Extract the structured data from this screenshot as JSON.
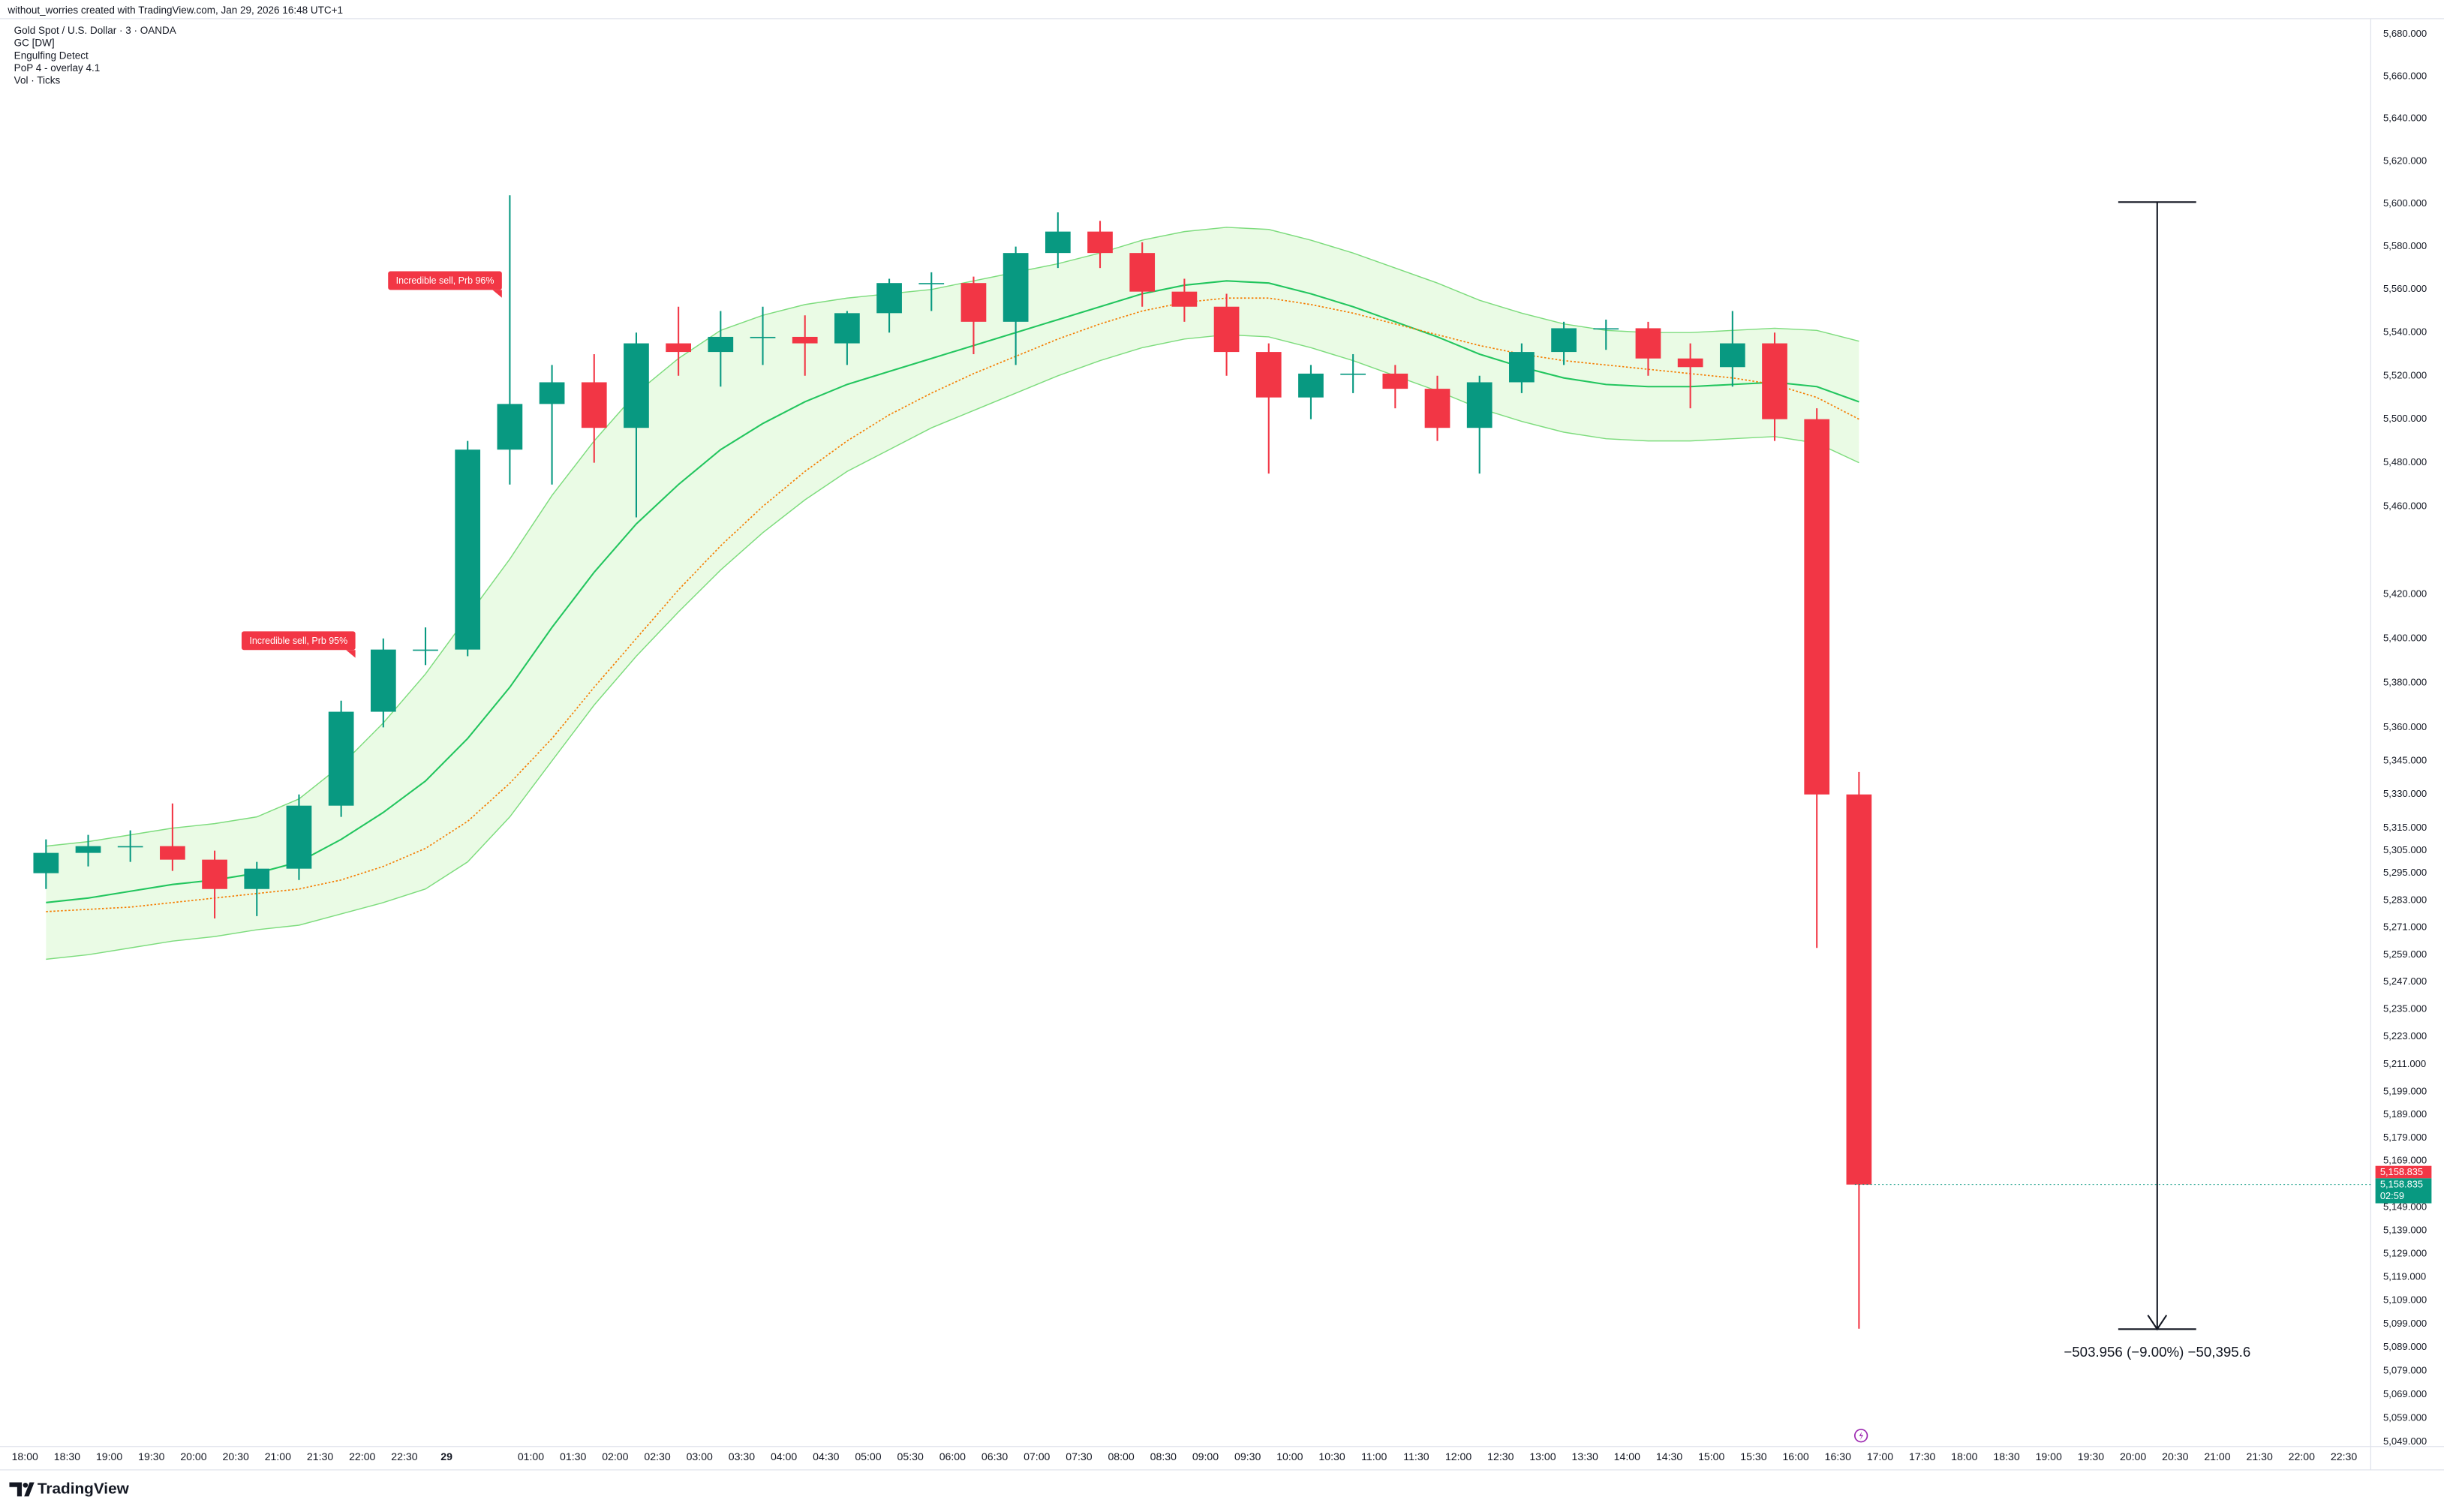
{
  "chart_data": {
    "type": "candlestick",
    "credit": "without_worries created with TradingView.com, Jan 29, 2026 16:48 UTC+1",
    "title": "Gold Spot / U.S. Dollar · 3 · OANDA",
    "indicators": [
      "GC [DW]",
      "Engulfing Detect",
      "PoP 4 - overlay 4.1",
      "Vol · Ticks"
    ],
    "brand": "TradingView",
    "log_scale": true,
    "grid": false,
    "ylim": [
      5047,
      5687.4
    ],
    "yticks": [
      {
        "value": 5680,
        "label": "5,680.000"
      },
      {
        "value": 5660,
        "label": "5,660.000"
      },
      {
        "value": 5640,
        "label": "5,640.000"
      },
      {
        "value": 5620,
        "label": "5,620.000"
      },
      {
        "value": 5600,
        "label": "5,600.000"
      },
      {
        "value": 5580,
        "label": "5,580.000"
      },
      {
        "value": 5560,
        "label": "5,560.000"
      },
      {
        "value": 5540,
        "label": "5,540.000"
      },
      {
        "value": 5520,
        "label": "5,520.000"
      },
      {
        "value": 5500,
        "label": "5,500.000"
      },
      {
        "value": 5480,
        "label": "5,480.000"
      },
      {
        "value": 5460,
        "label": "5,460.000"
      },
      {
        "value": 5420,
        "label": "5,420.000"
      },
      {
        "value": 5400,
        "label": "5,400.000"
      },
      {
        "value": 5380,
        "label": "5,380.000"
      },
      {
        "value": 5360,
        "label": "5,360.000"
      },
      {
        "value": 5345,
        "label": "5,345.000"
      },
      {
        "value": 5330,
        "label": "5,330.000"
      },
      {
        "value": 5315,
        "label": "5,315.000"
      },
      {
        "value": 5305,
        "label": "5,305.000"
      },
      {
        "value": 5295,
        "label": "5,295.000"
      },
      {
        "value": 5283,
        "label": "5,283.000"
      },
      {
        "value": 5271,
        "label": "5,271.000"
      },
      {
        "value": 5259,
        "label": "5,259.000"
      },
      {
        "value": 5247,
        "label": "5,247.000"
      },
      {
        "value": 5235,
        "label": "5,235.000"
      },
      {
        "value": 5223,
        "label": "5,223.000"
      },
      {
        "value": 5211,
        "label": "5,211.000"
      },
      {
        "value": 5199,
        "label": "5,199.000"
      },
      {
        "value": 5189,
        "label": "5,189.000"
      },
      {
        "value": 5179,
        "label": "5,179.000"
      },
      {
        "value": 5169,
        "label": "5,169.000"
      },
      {
        "value": 5149,
        "label": "5,149.000"
      },
      {
        "value": 5139,
        "label": "5,139.000"
      },
      {
        "value": 5129,
        "label": "5,129.000"
      },
      {
        "value": 5119,
        "label": "5,119.000"
      },
      {
        "value": 5109,
        "label": "5,109.000"
      },
      {
        "value": 5099,
        "label": "5,099.000"
      },
      {
        "value": 5089,
        "label": "5,089.000"
      },
      {
        "value": 5079,
        "label": "5,079.000"
      },
      {
        "value": 5069,
        "label": "5,069.000"
      },
      {
        "value": 5059,
        "label": "5,059.000"
      },
      {
        "value": 5049,
        "label": "5,049.000"
      }
    ],
    "categories": [
      "18:00",
      "18:30",
      "19:00",
      "19:30",
      "20:00",
      "20:30",
      "21:00",
      "21:30",
      "22:00",
      "22:30",
      "29",
      null,
      "01:00",
      "01:30",
      "02:00",
      "02:30",
      "03:00",
      "03:30",
      "04:00",
      "04:30",
      "05:00",
      "05:30",
      "06:00",
      "06:30",
      "07:00",
      "07:30",
      "08:00",
      "08:30",
      "09:00",
      "09:30",
      "10:00",
      "10:30",
      "11:00",
      "11:30",
      "12:00",
      "12:30",
      "13:00",
      "13:30",
      "14:00",
      "14:30",
      "15:00",
      "15:30",
      "16:00",
      "16:30",
      "17:00",
      "17:30",
      "18:00",
      "18:30",
      "19:00",
      "19:30",
      "20:00",
      "20:30",
      "21:00",
      "21:30",
      "22:00",
      "22:30"
    ],
    "open": [
      5295,
      5304,
      5307,
      5307,
      5301,
      5288,
      5297,
      5325,
      5367,
      5395,
      5395,
      5486,
      5507,
      5517,
      5496,
      5535,
      5531,
      5538,
      5538,
      5535,
      5549,
      5563,
      5563,
      5545,
      5577,
      5587,
      5577,
      5559,
      5552,
      5531,
      5510,
      5521,
      5521,
      5514,
      5496,
      5517,
      5531,
      5542,
      5542,
      5528,
      5524,
      5535,
      5500,
      5330,
      null,
      null,
      null,
      null,
      null,
      null,
      null,
      null,
      null,
      null,
      null,
      null
    ],
    "high": [
      5310,
      5312,
      5314,
      5326,
      5305,
      5300,
      5330,
      5372,
      5400,
      5405,
      5490,
      5604,
      5525,
      5530,
      5540,
      5552,
      5550,
      5552,
      5548,
      5550,
      5565,
      5568,
      5566,
      5580,
      5596,
      5592,
      5582,
      5565,
      5558,
      5535,
      5525,
      5530,
      5525,
      5520,
      5520,
      5535,
      5545,
      5546,
      5545,
      5535,
      5550,
      5540,
      5505,
      5340,
      null,
      null,
      null,
      null,
      null,
      null,
      null,
      null,
      null,
      null,
      null,
      null
    ],
    "low": [
      5288,
      5298,
      5300,
      5296,
      5275,
      5276,
      5292,
      5320,
      5360,
      5388,
      5392,
      5470,
      5470,
      5480,
      5455,
      5520,
      5515,
      5525,
      5520,
      5525,
      5540,
      5550,
      5530,
      5525,
      5570,
      5570,
      5552,
      5545,
      5520,
      5475,
      5500,
      5512,
      5505,
      5490,
      5475,
      5512,
      5525,
      5532,
      5520,
      5505,
      5515,
      5490,
      5262,
      5097,
      null,
      null,
      null,
      null,
      null,
      null,
      null,
      null,
      null,
      null,
      null,
      null
    ],
    "close": [
      5304,
      5307,
      5307,
      5301,
      5288,
      5297,
      5325,
      5367,
      5395,
      5395,
      5486,
      5507,
      5517,
      5496,
      5535,
      5531,
      5538,
      5538,
      5535,
      5549,
      5563,
      5563,
      5545,
      5577,
      5587,
      5577,
      5559,
      5552,
      5531,
      5510,
      5521,
      5521,
      5514,
      5496,
      5517,
      5531,
      5542,
      5542,
      5528,
      5524,
      5535,
      5500,
      5330,
      5158.835,
      null,
      null,
      null,
      null,
      null,
      null,
      null,
      null,
      null,
      null,
      null,
      null
    ],
    "up_color": "#089981",
    "down_color": "#f23645",
    "bands": {
      "basis": [
        5282,
        5284,
        5287,
        5290,
        5292,
        5295,
        5300,
        5310,
        5322,
        5336,
        5355,
        5378,
        5405,
        5430,
        5452,
        5470,
        5486,
        5498,
        5508,
        5516,
        5522,
        5528,
        5534,
        5540,
        5546,
        5552,
        5558,
        5562,
        5564,
        5563,
        5558,
        5552,
        5545,
        5538,
        5530,
        5524,
        5519,
        5516,
        5515,
        5515,
        5516,
        5517,
        5515,
        5508,
        null,
        null,
        null,
        null,
        null,
        null,
        null,
        null,
        null,
        null,
        null,
        null
      ],
      "upper": [
        5307,
        5309,
        5312,
        5315,
        5317,
        5320,
        5328,
        5343,
        5362,
        5384,
        5410,
        5436,
        5465,
        5490,
        5512,
        5528,
        5541,
        5548,
        5553,
        5556,
        5558,
        5560,
        5564,
        5568,
        5572,
        5577,
        5583,
        5587,
        5589,
        5588,
        5583,
        5577,
        5570,
        5563,
        5555,
        5549,
        5544,
        5541,
        5540,
        5540,
        5541,
        5542,
        5541,
        5536,
        null,
        null,
        null,
        null,
        null,
        null,
        null,
        null,
        null,
        null,
        null,
        null
      ],
      "lower": [
        5257,
        5259,
        5262,
        5265,
        5267,
        5270,
        5272,
        5277,
        5282,
        5288,
        5300,
        5320,
        5345,
        5370,
        5392,
        5412,
        5431,
        5448,
        5463,
        5476,
        5486,
        5496,
        5504,
        5512,
        5520,
        5527,
        5533,
        5537,
        5539,
        5538,
        5533,
        5527,
        5520,
        5513,
        5505,
        5499,
        5494,
        5491,
        5490,
        5490,
        5491,
        5492,
        5489,
        5480,
        null,
        null,
        null,
        null,
        null,
        null,
        null,
        null,
        null,
        null,
        null,
        null
      ],
      "signal": [
        5278,
        5279,
        5280,
        5282,
        5284,
        5286,
        5288,
        5292,
        5298,
        5306,
        5318,
        5335,
        5355,
        5378,
        5400,
        5422,
        5442,
        5460,
        5476,
        5490,
        5502,
        5512,
        5521,
        5529,
        5537,
        5544,
        5550,
        5554,
        5556,
        5556,
        5553,
        5549,
        5544,
        5539,
        5534,
        5530,
        5527,
        5525,
        5523,
        5521,
        5519,
        5516,
        5510,
        5500,
        null,
        null,
        null,
        null,
        null,
        null,
        null,
        null,
        null,
        null,
        null,
        null
      ],
      "basis_color": "#22c55e",
      "band_color": "#7ddc7d",
      "fill_color": "#d9f7d0",
      "signal_color": "#f57c00"
    },
    "annotations": [
      "Incredible sell, Prb 96%",
      "Incredible sell, Prb 95%"
    ],
    "measure": {
      "label": "−503.956 (−9.00%) −50,395.6",
      "start": 5600.8,
      "end": 5096.8
    },
    "last_price": {
      "value": 5158.835,
      "label": "5,158.835"
    },
    "countdown": "02:59"
  }
}
